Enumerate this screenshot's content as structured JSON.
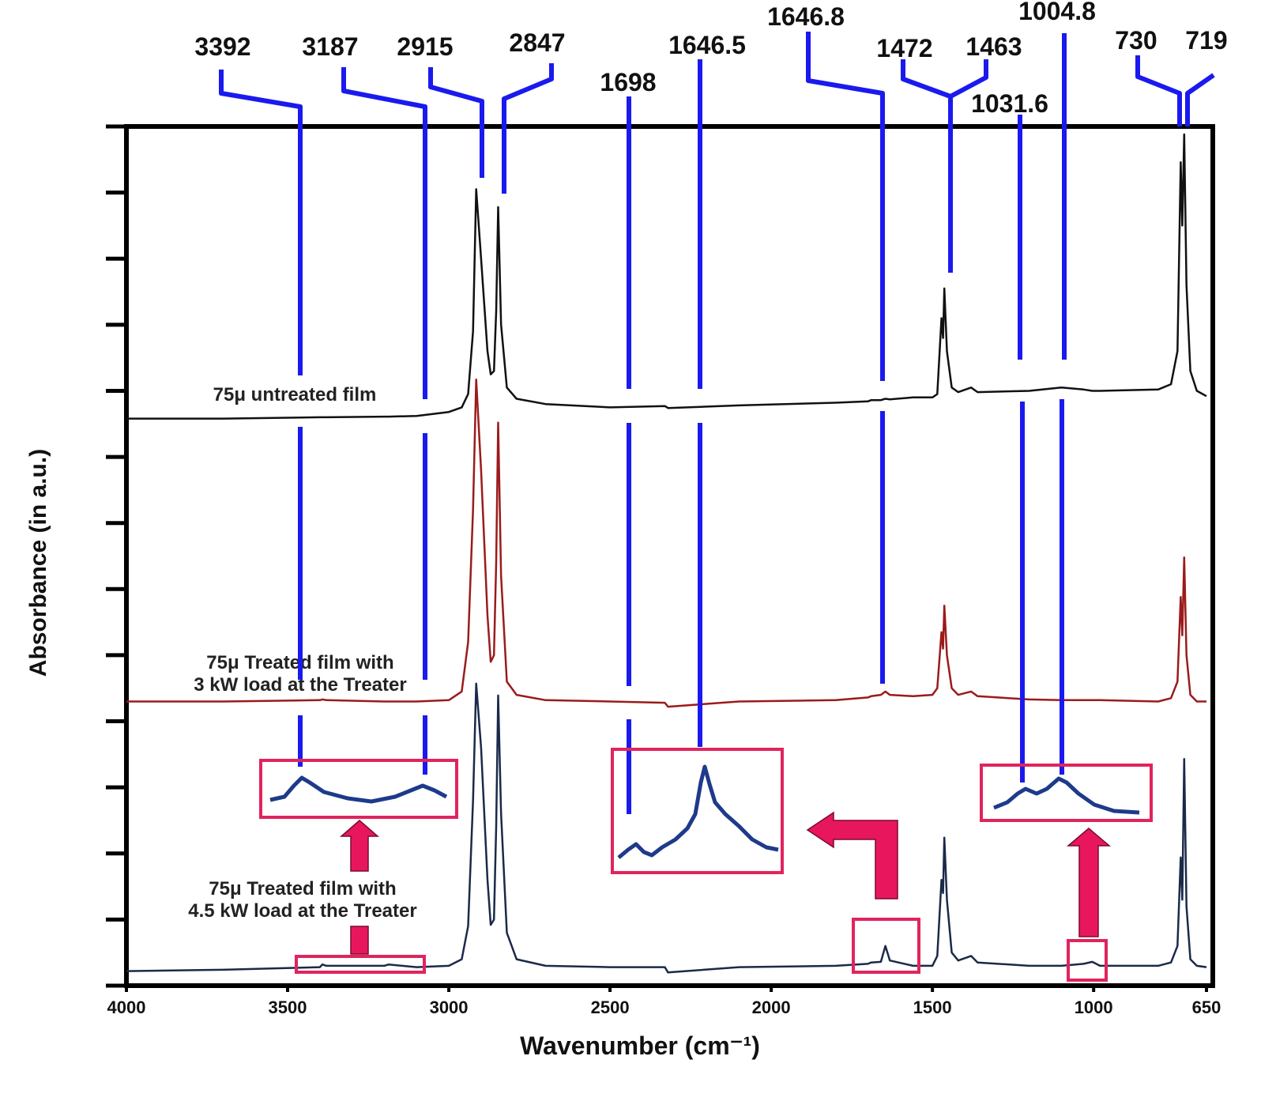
{
  "chart_data": {
    "type": "line",
    "xlabel": "Wavenumber (cm⁻¹)",
    "ylabel": "Absorbance (in a.u.)",
    "xlim": [
      4000,
      650
    ],
    "xticks": [
      4000,
      3500,
      3000,
      2500,
      2000,
      1500,
      1000,
      650
    ],
    "ylim": [
      0,
      13
    ],
    "yticks": [
      0,
      1,
      2,
      3,
      4,
      5,
      6,
      7,
      8,
      9,
      10,
      11,
      12,
      13
    ],
    "annotations": [
      "3392",
      "3187",
      "2915",
      "2847",
      "1698",
      "1646.5",
      "1646.8",
      "1472",
      "1463",
      "1031.6",
      "1004.8",
      "730",
      "719"
    ],
    "x": [
      4000,
      3700,
      3400,
      3392,
      3380,
      3200,
      3187,
      3100,
      3000,
      2960,
      2940,
      2925,
      2915,
      2900,
      2880,
      2870,
      2860,
      2853,
      2847,
      2838,
      2820,
      2790,
      2700,
      2500,
      2330,
      2320,
      2100,
      1800,
      1700,
      1690,
      1660,
      1646,
      1632,
      1560,
      1500,
      1485,
      1472,
      1467,
      1463,
      1455,
      1440,
      1420,
      1380,
      1360,
      1200,
      1100,
      1031,
      1004,
      980,
      800,
      760,
      740,
      730,
      725,
      719,
      712,
      700,
      680,
      650
    ],
    "series": [
      {
        "name": [
          "75μ untreated film"
        ],
        "color": "#111111",
        "values": [
          8.58,
          8.58,
          8.6,
          8.6,
          8.6,
          8.61,
          8.61,
          8.62,
          8.68,
          8.75,
          8.95,
          9.9,
          12.05,
          11.0,
          9.6,
          9.25,
          9.3,
          10.2,
          11.78,
          10.0,
          9.05,
          8.88,
          8.8,
          8.75,
          8.77,
          8.74,
          8.78,
          8.82,
          8.84,
          8.86,
          8.86,
          8.88,
          8.87,
          8.9,
          8.9,
          8.95,
          10.1,
          9.8,
          10.55,
          9.6,
          9.05,
          8.98,
          9.05,
          8.98,
          9.0,
          9.05,
          9.02,
          9.0,
          9.0,
          9.02,
          9.1,
          9.6,
          12.46,
          11.5,
          12.88,
          10.6,
          9.3,
          9.0,
          8.92
        ]
      },
      {
        "name": [
          "75μ Treated film with",
          "3 kW load at the Treater"
        ],
        "color": "#9b1b1b",
        "values": [
          4.3,
          4.3,
          4.32,
          4.33,
          4.32,
          4.3,
          4.3,
          4.3,
          4.32,
          4.45,
          5.2,
          7.2,
          9.17,
          7.8,
          5.6,
          4.9,
          5.0,
          6.4,
          8.52,
          6.2,
          4.6,
          4.4,
          4.32,
          4.3,
          4.28,
          4.22,
          4.3,
          4.32,
          4.36,
          4.38,
          4.4,
          4.45,
          4.4,
          4.38,
          4.4,
          4.5,
          5.35,
          5.1,
          5.75,
          5.0,
          4.5,
          4.4,
          4.45,
          4.38,
          4.33,
          4.32,
          4.32,
          4.32,
          4.32,
          4.3,
          4.35,
          4.6,
          5.88,
          5.3,
          6.48,
          5.0,
          4.4,
          4.3,
          4.3
        ]
      },
      {
        "name": [
          "75μ Treated film with",
          "4.5 kW load at the Treater"
        ],
        "color": "#1a2a4a",
        "values": [
          0.22,
          0.24,
          0.28,
          0.32,
          0.3,
          0.3,
          0.32,
          0.28,
          0.3,
          0.4,
          0.9,
          2.8,
          4.57,
          3.6,
          1.6,
          0.92,
          1.0,
          2.4,
          4.39,
          2.6,
          0.8,
          0.4,
          0.3,
          0.28,
          0.28,
          0.2,
          0.28,
          0.3,
          0.33,
          0.35,
          0.36,
          0.6,
          0.38,
          0.3,
          0.3,
          0.45,
          1.6,
          1.4,
          2.24,
          1.3,
          0.5,
          0.38,
          0.45,
          0.35,
          0.3,
          0.3,
          0.33,
          0.36,
          0.3,
          0.3,
          0.35,
          0.6,
          1.94,
          1.3,
          3.43,
          1.2,
          0.4,
          0.3,
          0.28
        ]
      }
    ]
  }
}
